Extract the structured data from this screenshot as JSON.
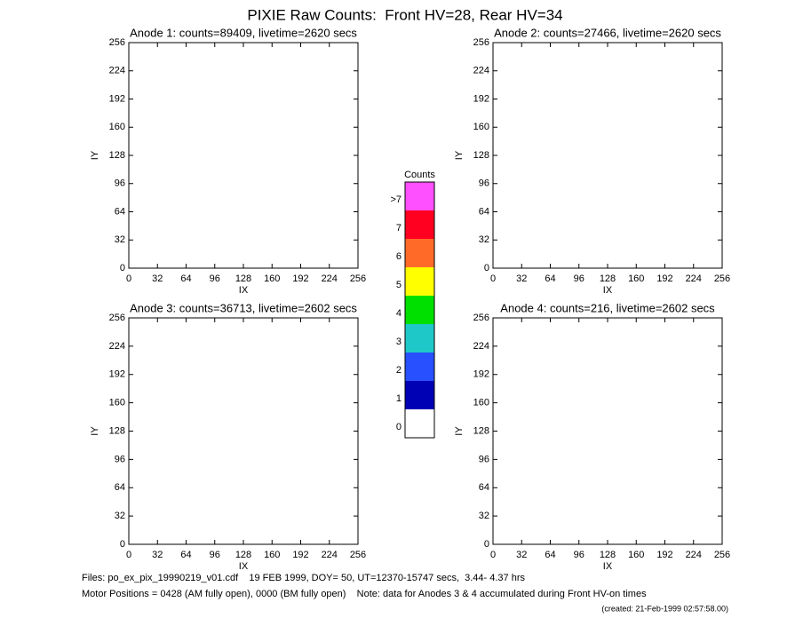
{
  "title": "PIXIE Raw Counts:  Front HV=28, Rear HV=34",
  "chart_data": [
    {
      "type": "heatmap",
      "title": "Anode 1: counts=89409, livetime=2620 secs",
      "x_label": "IX",
      "y_label": "IY",
      "xlim": [
        0,
        256
      ],
      "ylim": [
        0,
        256
      ],
      "xticks": [
        0,
        32,
        64,
        96,
        128,
        160,
        192,
        224,
        256
      ],
      "yticks": [
        0,
        32,
        64,
        96,
        128,
        160,
        192,
        224,
        256
      ]
    },
    {
      "type": "heatmap",
      "title": "Anode 2: counts=27466, livetime=2620 secs",
      "x_label": "IX",
      "y_label": "IY",
      "xlim": [
        0,
        256
      ],
      "ylim": [
        0,
        256
      ],
      "xticks": [
        0,
        32,
        64,
        96,
        128,
        160,
        192,
        224,
        256
      ],
      "yticks": [
        0,
        32,
        64,
        96,
        128,
        160,
        192,
        224,
        256
      ]
    },
    {
      "type": "heatmap",
      "title": "Anode 3: counts=36713, livetime=2602 secs",
      "x_label": "IX",
      "y_label": "IY",
      "xlim": [
        0,
        256
      ],
      "ylim": [
        0,
        256
      ],
      "xticks": [
        0,
        32,
        64,
        96,
        128,
        160,
        192,
        224,
        256
      ],
      "yticks": [
        0,
        32,
        64,
        96,
        128,
        160,
        192,
        224,
        256
      ]
    },
    {
      "type": "heatmap",
      "title": "Anode 4: counts=216, livetime=2602 secs",
      "x_label": "IX",
      "y_label": "IY",
      "xlim": [
        0,
        256
      ],
      "ylim": [
        0,
        256
      ],
      "xticks": [
        0,
        32,
        64,
        96,
        128,
        160,
        192,
        224,
        256
      ],
      "yticks": [
        0,
        32,
        64,
        96,
        128,
        160,
        192,
        224,
        256
      ]
    }
  ],
  "colorbar": {
    "title": "Counts",
    "labels": [
      "0",
      "1",
      "2",
      "3",
      "4",
      "5",
      "6",
      "7",
      ">7"
    ],
    "colors": [
      "#ffffff",
      "#0000b4",
      "#2850ff",
      "#1ec8c8",
      "#00e000",
      "#ffff00",
      "#ff6a28",
      "#ff0020",
      "#ff50ff"
    ]
  },
  "footer": [
    "Files: po_ex_pix_19990219_v01.cdf    19 FEB 1999, DOY= 50, UT=12370-15747 secs,  3.44- 4.37 hrs",
    "Motor Positions = 0428 (AM fully open), 0000 (BM fully open)    Note: data for Anodes 3 & 4 accumulated during Front HV-on times",
    "(created: 21-Feb-1999 02:57:58.00)"
  ]
}
